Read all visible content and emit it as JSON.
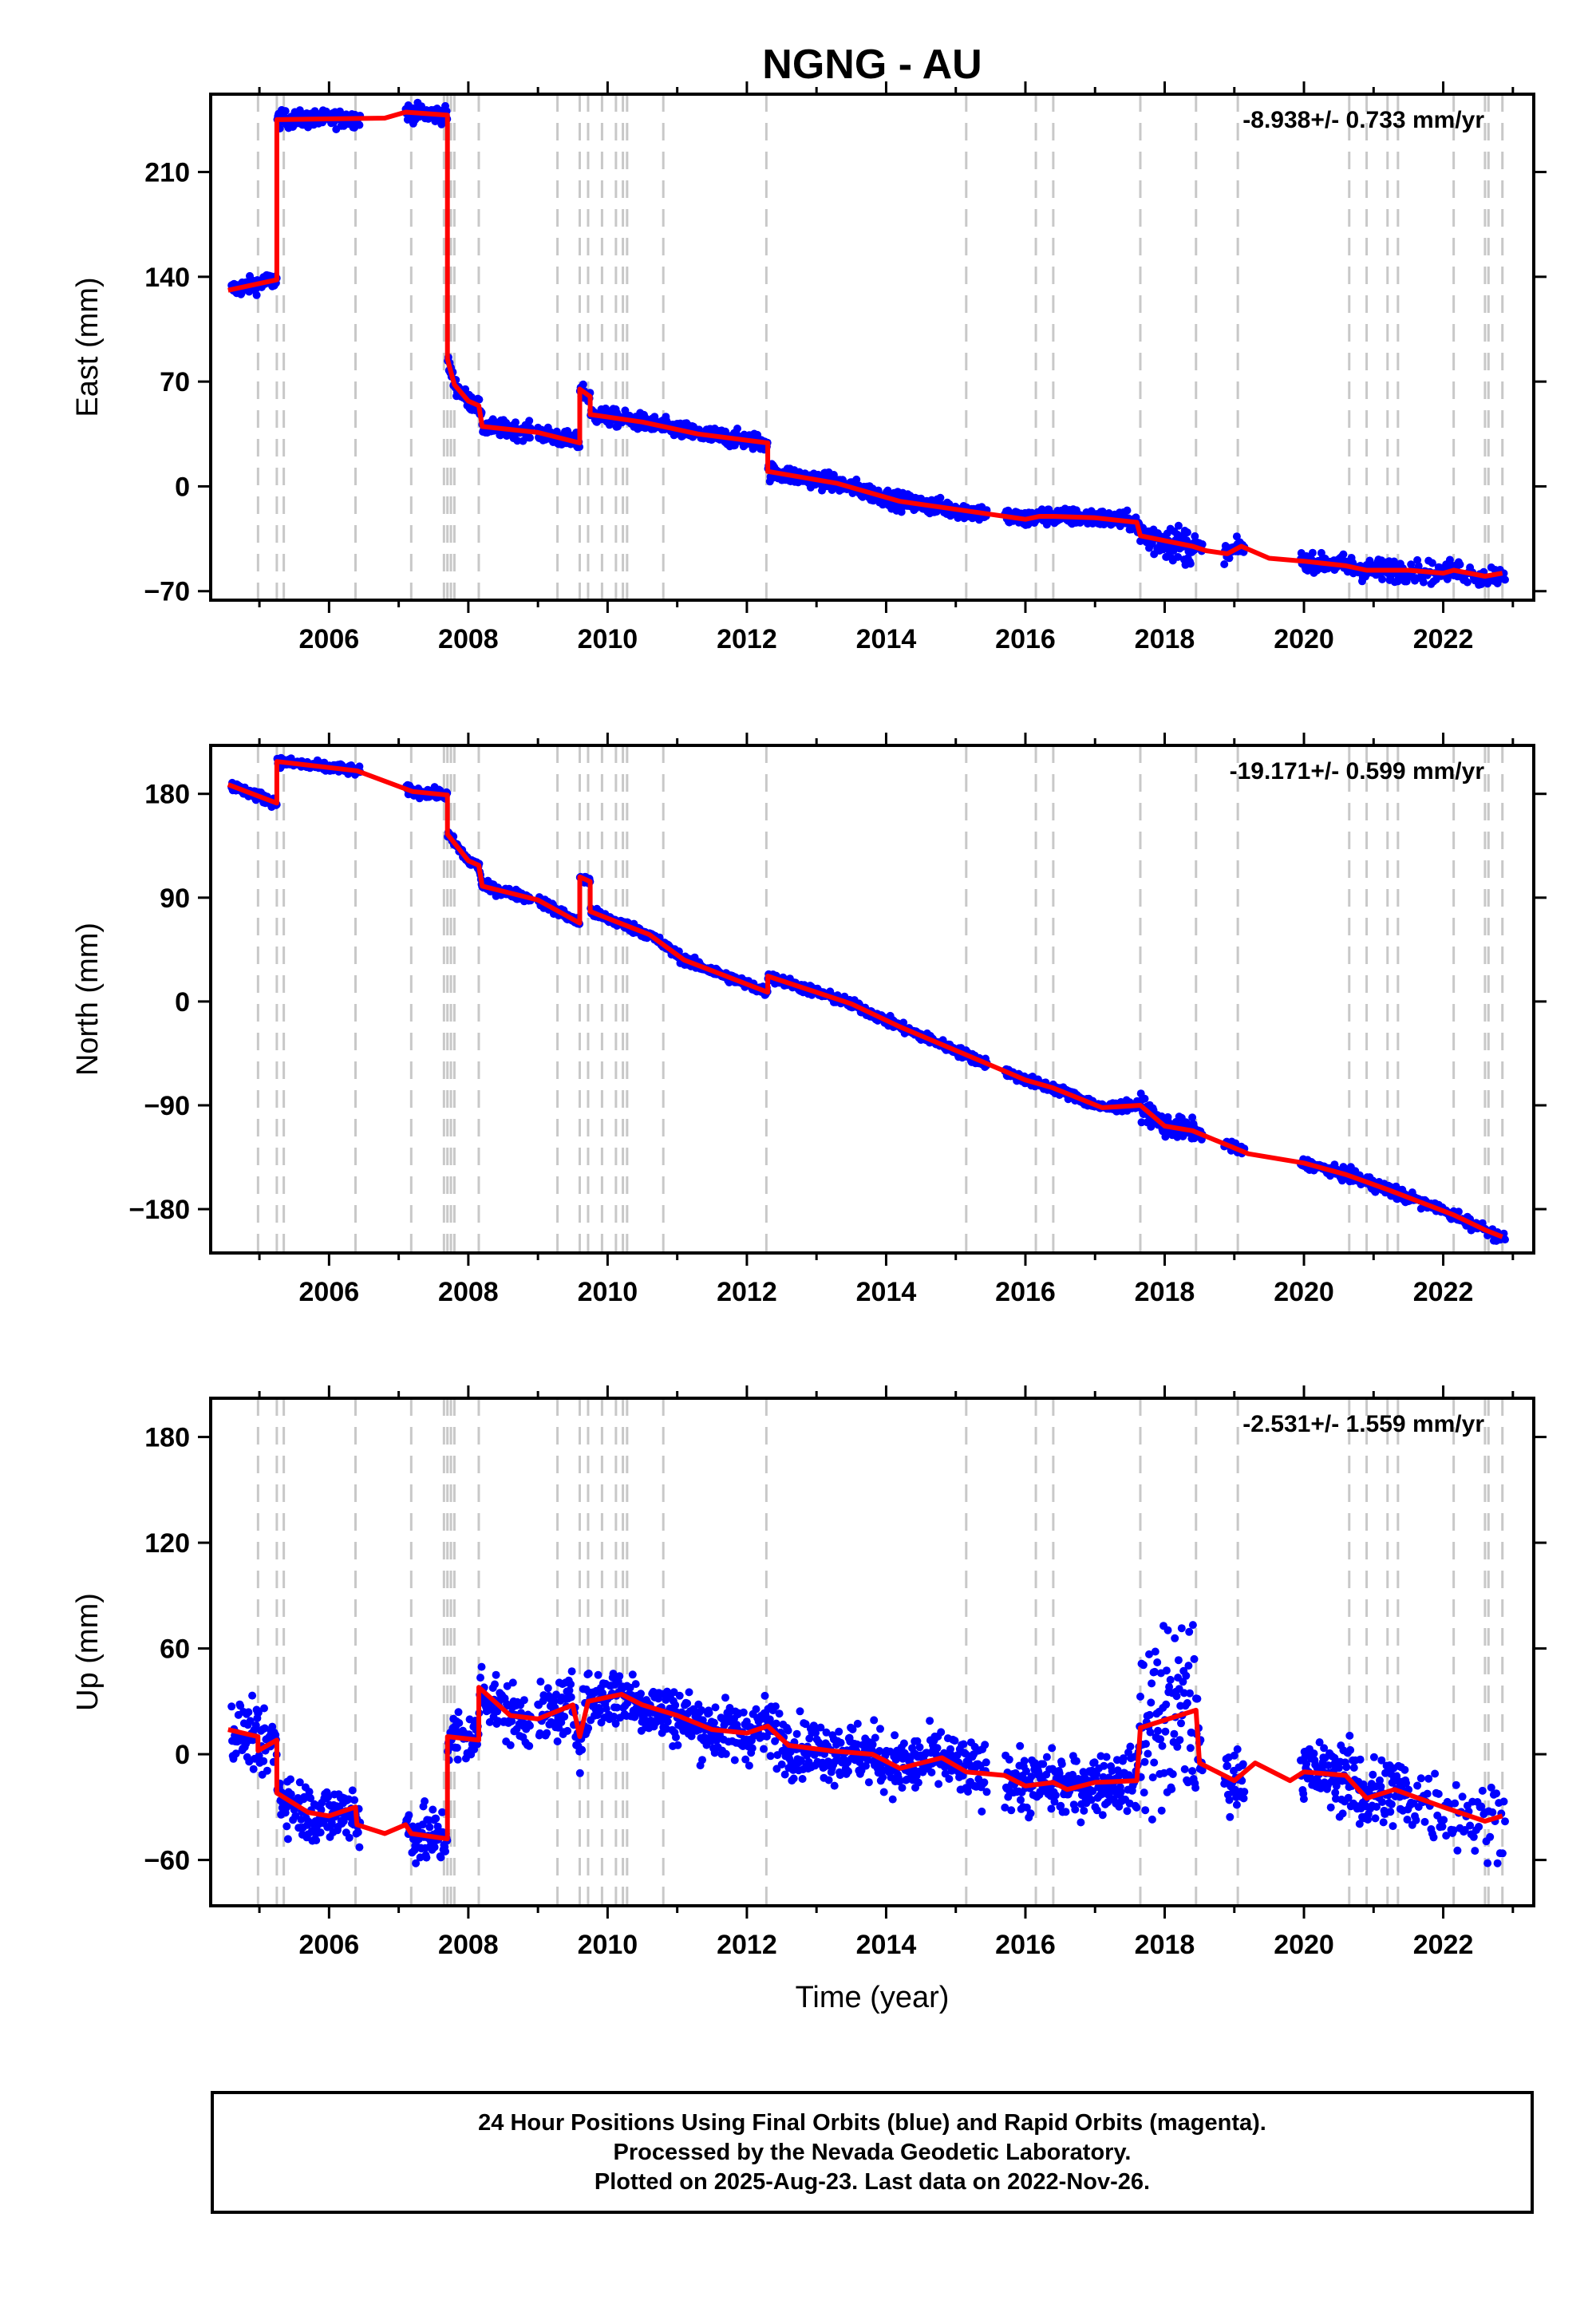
{
  "chart_data": {
    "type": "scatter",
    "title": "NGNG - AU",
    "xlabel": "Time (year)",
    "x_ticks": [
      2006,
      2008,
      2010,
      2012,
      2014,
      2016,
      2018,
      2020,
      2022
    ],
    "xlim": [
      2004.3,
      2023.3
    ],
    "series_colors": {
      "daily_positions": "#0000ff",
      "model_fit": "#ff0000",
      "events": "#c8c8c8"
    },
    "event_lines": [
      2004.98,
      2005.25,
      2005.35,
      2006.38,
      2007.18,
      2007.65,
      2007.7,
      2007.75,
      2007.8,
      2008.15,
      2009.28,
      2009.6,
      2009.72,
      2009.92,
      2010.12,
      2010.22,
      2010.28,
      2010.8,
      2012.28,
      2015.15,
      2016.15,
      2016.4,
      2017.65,
      2018.45,
      2019.05,
      2020.65,
      2020.9,
      2021.2,
      2021.35,
      2022.15,
      2022.6,
      2022.65,
      2022.85
    ],
    "panels": [
      {
        "name": "east",
        "ylabel": "East (mm)",
        "rate_label": "-8.938+/- 0.733 mm/yr",
        "y_ticks": [
          -70,
          0,
          70,
          140,
          210
        ],
        "y_tick_labels": [
          "−70",
          "0",
          "70",
          "140",
          "210"
        ],
        "ylim": [
          -76,
          262
        ],
        "fit": [
          [
            2004.55,
            131
          ],
          [
            2005.25,
            138
          ],
          [
            2005.25,
            245
          ],
          [
            2006.8,
            246
          ],
          [
            2007.1,
            250
          ],
          [
            2007.7,
            248
          ],
          [
            2007.7,
            85
          ],
          [
            2007.8,
            68
          ],
          [
            2008.0,
            57
          ],
          [
            2008.15,
            54
          ],
          [
            2008.2,
            40
          ],
          [
            2009.0,
            36
          ],
          [
            2009.6,
            29
          ],
          [
            2009.6,
            65
          ],
          [
            2009.75,
            60
          ],
          [
            2009.75,
            48
          ],
          [
            2010.5,
            43
          ],
          [
            2011.3,
            35
          ],
          [
            2012.3,
            29
          ],
          [
            2012.3,
            10
          ],
          [
            2013.3,
            2
          ],
          [
            2014.2,
            -10
          ],
          [
            2014.8,
            -14
          ],
          [
            2015.4,
            -18
          ],
          [
            2016.0,
            -22
          ],
          [
            2016.2,
            -20
          ],
          [
            2016.4,
            -20
          ],
          [
            2017.0,
            -21
          ],
          [
            2017.6,
            -24
          ],
          [
            2017.65,
            -33
          ],
          [
            2018.4,
            -40
          ],
          [
            2018.6,
            -43
          ],
          [
            2018.9,
            -45
          ],
          [
            2019.1,
            -40
          ],
          [
            2019.5,
            -48
          ],
          [
            2020.0,
            -50
          ],
          [
            2020.6,
            -53
          ],
          [
            2020.9,
            -56
          ],
          [
            2021.5,
            -56
          ],
          [
            2022.0,
            -58
          ],
          [
            2022.15,
            -56
          ],
          [
            2022.6,
            -60
          ],
          [
            2022.85,
            -58
          ]
        ],
        "noise": 4
      },
      {
        "name": "north",
        "ylabel": "North (mm)",
        "rate_label": "-19.171+/- 0.599 mm/yr",
        "y_ticks": [
          -180,
          -90,
          0,
          90,
          180
        ],
        "y_tick_labels": [
          "−180",
          "−90",
          "0",
          "90",
          "180"
        ],
        "ylim": [
          -218,
          222
        ],
        "fit": [
          [
            2004.55,
            188
          ],
          [
            2005.25,
            172
          ],
          [
            2005.25,
            208
          ],
          [
            2006.4,
            200
          ],
          [
            2007.2,
            182
          ],
          [
            2007.7,
            179
          ],
          [
            2007.7,
            145
          ],
          [
            2008.0,
            122
          ],
          [
            2008.15,
            118
          ],
          [
            2008.2,
            100
          ],
          [
            2009.0,
            88
          ],
          [
            2009.6,
            68
          ],
          [
            2009.6,
            108
          ],
          [
            2009.75,
            104
          ],
          [
            2009.75,
            78
          ],
          [
            2010.6,
            58
          ],
          [
            2011.1,
            36
          ],
          [
            2012.3,
            8
          ],
          [
            2012.3,
            22
          ],
          [
            2013.5,
            -2
          ],
          [
            2014.2,
            -22
          ],
          [
            2015.1,
            -45
          ],
          [
            2016.0,
            -68
          ],
          [
            2016.4,
            -75
          ],
          [
            2017.1,
            -92
          ],
          [
            2017.65,
            -90
          ],
          [
            2018.0,
            -108
          ],
          [
            2018.4,
            -112
          ],
          [
            2019.2,
            -132
          ],
          [
            2020.0,
            -140
          ],
          [
            2020.6,
            -150
          ],
          [
            2021.2,
            -163
          ],
          [
            2022.15,
            -185
          ],
          [
            2022.6,
            -198
          ],
          [
            2022.85,
            -204
          ]
        ],
        "noise": 3
      },
      {
        "name": "up",
        "ylabel": "Up (mm)",
        "rate_label": "-2.531+/- 1.559 mm/yr",
        "y_ticks": [
          -60,
          0,
          60,
          120,
          180
        ],
        "y_tick_labels": [
          "−60",
          "0",
          "60",
          "120",
          "180"
        ],
        "ylim": [
          -86,
          202
        ],
        "fit": [
          [
            2004.55,
            14
          ],
          [
            2004.98,
            10
          ],
          [
            2004.98,
            2
          ],
          [
            2005.25,
            8
          ],
          [
            2005.25,
            -22
          ],
          [
            2005.7,
            -33
          ],
          [
            2006.0,
            -35
          ],
          [
            2006.38,
            -30
          ],
          [
            2006.4,
            -40
          ],
          [
            2006.8,
            -45
          ],
          [
            2007.1,
            -40
          ],
          [
            2007.18,
            -45
          ],
          [
            2007.7,
            -48
          ],
          [
            2007.7,
            10
          ],
          [
            2008.15,
            8
          ],
          [
            2008.15,
            38
          ],
          [
            2008.6,
            22
          ],
          [
            2009.0,
            20
          ],
          [
            2009.5,
            28
          ],
          [
            2009.6,
            10
          ],
          [
            2009.72,
            30
          ],
          [
            2010.2,
            34
          ],
          [
            2010.5,
            28
          ],
          [
            2011.0,
            22
          ],
          [
            2011.5,
            14
          ],
          [
            2012.0,
            12
          ],
          [
            2012.3,
            16
          ],
          [
            2012.6,
            5
          ],
          [
            2013.2,
            2
          ],
          [
            2013.8,
            0
          ],
          [
            2014.2,
            -8
          ],
          [
            2014.8,
            -2
          ],
          [
            2015.15,
            -10
          ],
          [
            2015.7,
            -12
          ],
          [
            2016.0,
            -18
          ],
          [
            2016.4,
            -16
          ],
          [
            2016.6,
            -20
          ],
          [
            2017.0,
            -16
          ],
          [
            2017.6,
            -15
          ],
          [
            2017.65,
            15
          ],
          [
            2018.45,
            25
          ],
          [
            2018.5,
            -5
          ],
          [
            2019.0,
            -15
          ],
          [
            2019.3,
            -5
          ],
          [
            2019.8,
            -15
          ],
          [
            2020.0,
            -10
          ],
          [
            2020.6,
            -12
          ],
          [
            2020.9,
            -25
          ],
          [
            2021.3,
            -20
          ],
          [
            2022.0,
            -30
          ],
          [
            2022.6,
            -38
          ],
          [
            2022.85,
            -35
          ]
        ],
        "noise": 12
      }
    ]
  },
  "footer": {
    "line1": "24 Hour Positions Using Final Orbits (blue) and Rapid Orbits (magenta).",
    "line2": "Processed by the Nevada Geodetic Laboratory.",
    "line3": "Plotted on 2025-Aug-23. Last data on 2022-Nov-26."
  }
}
